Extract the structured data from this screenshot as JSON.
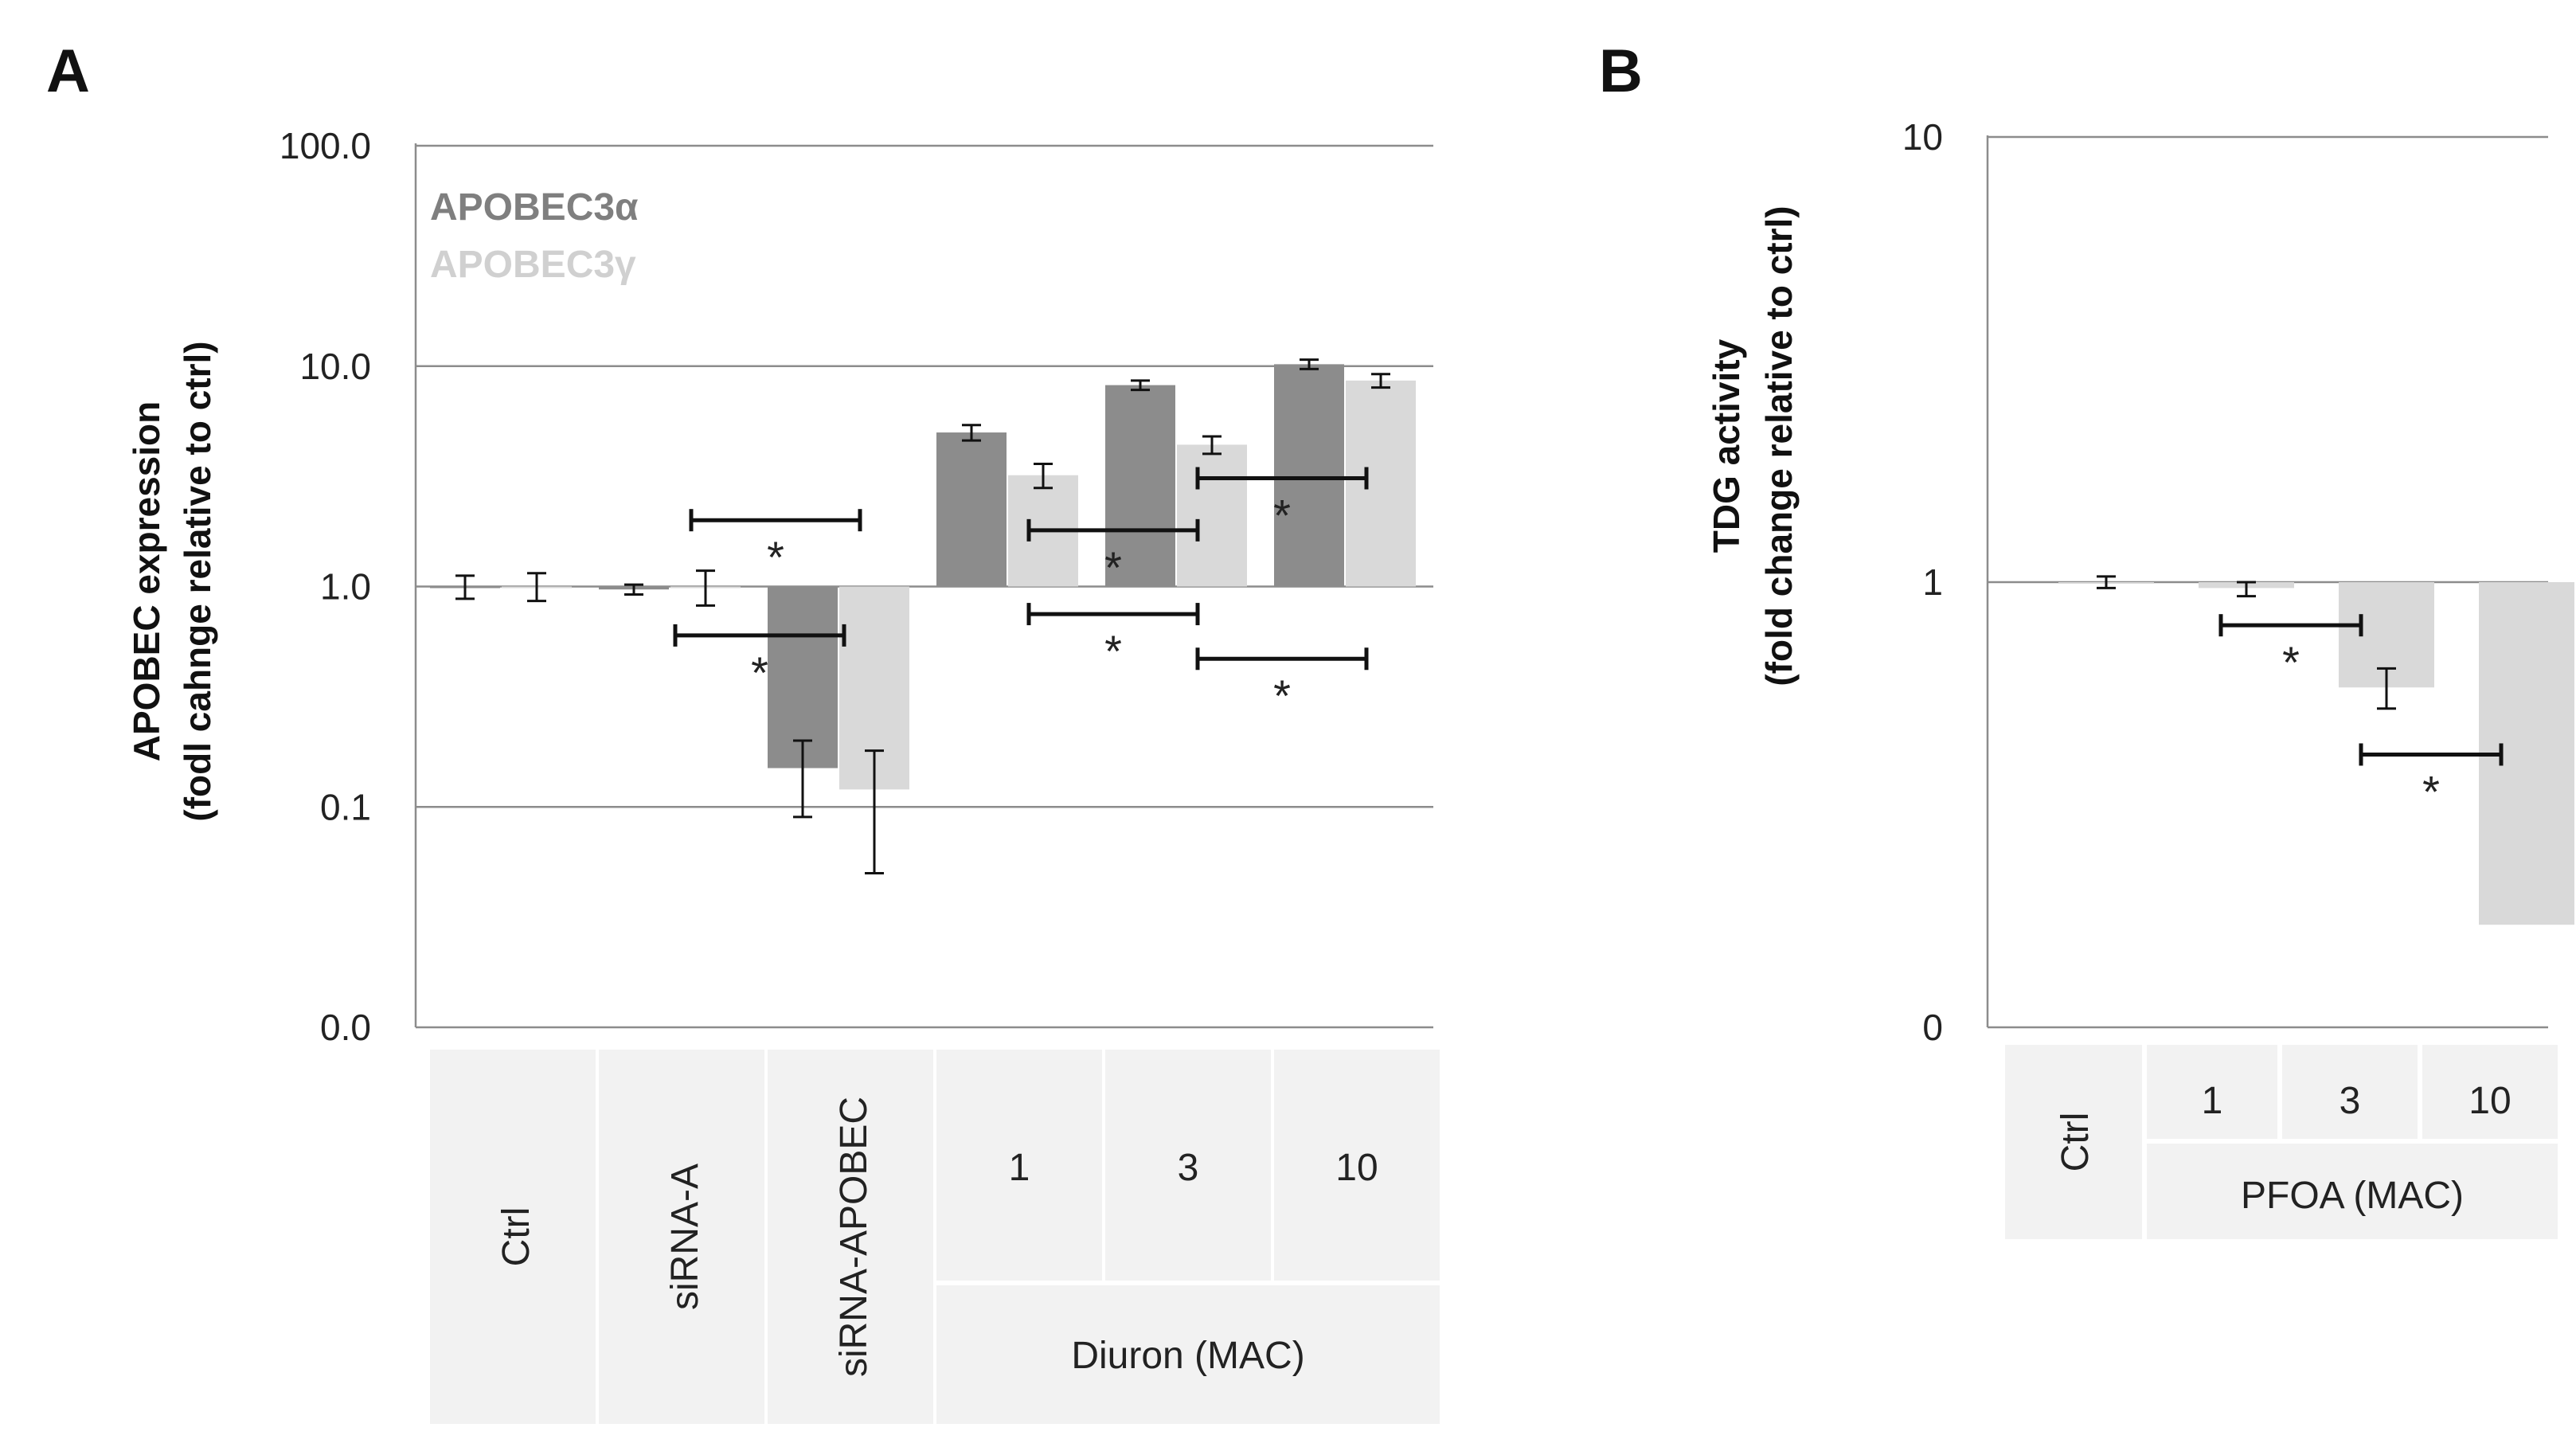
{
  "panels": [
    {
      "letter": "A",
      "chart_data": {
        "type": "bar",
        "scale": "log",
        "ylabel_lines": [
          "APOBEC expression",
          "(fodl cahnge relative to ctrl)"
        ],
        "yticks": [
          {
            "value": 100,
            "label": "100.0"
          },
          {
            "value": 10,
            "label": "10.0"
          },
          {
            "value": 1,
            "label": "1.0"
          },
          {
            "value": 0.1,
            "label": "0.1"
          },
          {
            "value": 0.01,
            "label": "0.0"
          }
        ],
        "ylim": [
          0.01,
          100
        ],
        "legend": [
          {
            "name": "APOBEC3α",
            "color": "#8c8c8c"
          },
          {
            "name": "APOBEC3γ",
            "color": "#d9d9d9"
          }
        ],
        "categories": [
          "Ctrl",
          "siRNA-A",
          "siRNA-APOBEC",
          "1",
          "3",
          "10"
        ],
        "group_label": "Diuron (MAC)",
        "series": [
          {
            "name": "APOBEC3α",
            "color": "#8c8c8c",
            "values": [
              1.0,
              0.97,
              0.15,
              5.0,
              8.2,
              10.2
            ],
            "err_low": [
              0.88,
              0.92,
              0.09,
              4.6,
              7.8,
              9.7
            ],
            "err_high": [
              1.12,
              1.02,
              0.2,
              5.4,
              8.6,
              10.7
            ]
          },
          {
            "name": "APOBEC3γ",
            "color": "#d9d9d9",
            "values": [
              1.0,
              1.0,
              0.12,
              3.2,
              4.4,
              8.6
            ],
            "err_low": [
              0.86,
              0.82,
              0.05,
              2.8,
              4.0,
              8.0
            ],
            "err_high": [
              1.15,
              1.18,
              0.18,
              3.6,
              4.8,
              9.2
            ]
          }
        ],
        "significance": [
          {
            "from_cat": 1,
            "to_cat": 2,
            "y": 0.6,
            "label": "*"
          },
          {
            "from_cat": 1,
            "to_cat": 2,
            "y": 2.0,
            "label": "*"
          },
          {
            "from_cat": 3,
            "to_cat": 4,
            "y": 0.75,
            "label": "*"
          },
          {
            "from_cat": 3,
            "to_cat": 4,
            "y": 1.8,
            "label": "*"
          },
          {
            "from_cat": 4,
            "to_cat": 5,
            "y": 0.47,
            "label": "*"
          },
          {
            "from_cat": 4,
            "to_cat": 5,
            "y": 3.1,
            "label": "*"
          }
        ]
      }
    },
    {
      "letter": "B",
      "chart_data": {
        "type": "bar",
        "scale": "log",
        "ylabel_lines": [
          "TDG activity",
          "(fold change relative to ctrl)"
        ],
        "yticks": [
          {
            "value": 10,
            "label": "10"
          },
          {
            "value": 1,
            "label": "1"
          },
          {
            "value": 0.1,
            "label": "0"
          }
        ],
        "ylim": [
          0.1,
          10
        ],
        "categories": [
          "Ctrl",
          "1",
          "3",
          "10"
        ],
        "group_label": "PFOA (MAC)",
        "series": [
          {
            "name": "TDG activity",
            "color": "#d9d9d9",
            "values": [
              1.0,
              0.97,
              0.58,
              0.17
            ],
            "err_low": [
              0.97,
              0.93,
              0.52,
              0.17
            ],
            "err_high": [
              1.03,
              1.0,
              0.64,
              0.17
            ]
          }
        ],
        "significance": [
          {
            "from_cat": 1,
            "to_cat": 2,
            "y": 0.8,
            "label": "*"
          },
          {
            "from_cat": 2,
            "to_cat": 3,
            "y": 0.41,
            "label": "*"
          }
        ]
      }
    }
  ]
}
